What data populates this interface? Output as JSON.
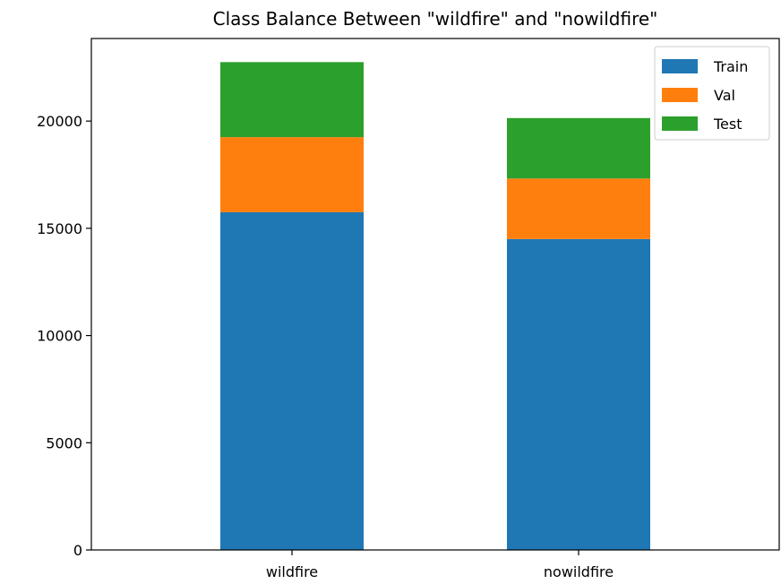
{
  "chart_data": {
    "type": "bar",
    "stacked": true,
    "title": "Class Balance Between \"wildfire\" and \"nowildfire\"",
    "xlabel": "",
    "ylabel": "",
    "categories": [
      "wildfire",
      "nowildfire"
    ],
    "series": [
      {
        "name": "Train",
        "color": "#1f77b4",
        "values": [
          15750,
          14500
        ]
      },
      {
        "name": "Val",
        "color": "#ff7f0e",
        "values": [
          3500,
          2820
        ]
      },
      {
        "name": "Test",
        "color": "#2ca02c",
        "values": [
          3500,
          2820
        ]
      }
    ],
    "ylim": [
      0,
      23850
    ],
    "yticks": [
      0,
      5000,
      10000,
      15000,
      20000
    ],
    "grid": false,
    "legend": "top-right"
  }
}
